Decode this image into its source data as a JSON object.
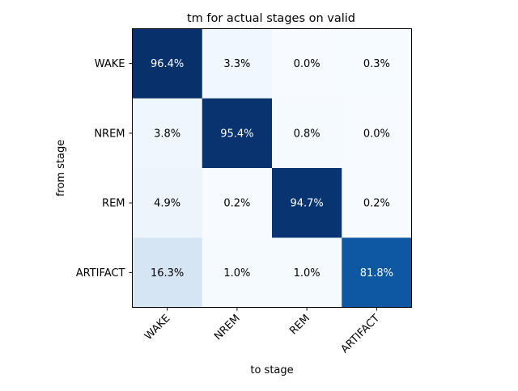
{
  "chart_data": {
    "type": "heatmap",
    "title": "tm for actual stages on valid",
    "xlabel": "to stage",
    "ylabel": "from stage",
    "x_categories": [
      "WAKE",
      "NREM",
      "REM",
      "ARTIFACT"
    ],
    "y_categories": [
      "WAKE",
      "NREM",
      "REM",
      "ARTIFACT"
    ],
    "values": [
      [
        96.4,
        3.3,
        0.0,
        0.3
      ],
      [
        3.8,
        95.4,
        0.8,
        0.0
      ],
      [
        4.9,
        0.2,
        94.7,
        0.2
      ],
      [
        16.3,
        1.0,
        1.0,
        81.8
      ]
    ],
    "value_suffix": "%",
    "colormap": "Blues",
    "colorbar": false,
    "grid": false
  }
}
